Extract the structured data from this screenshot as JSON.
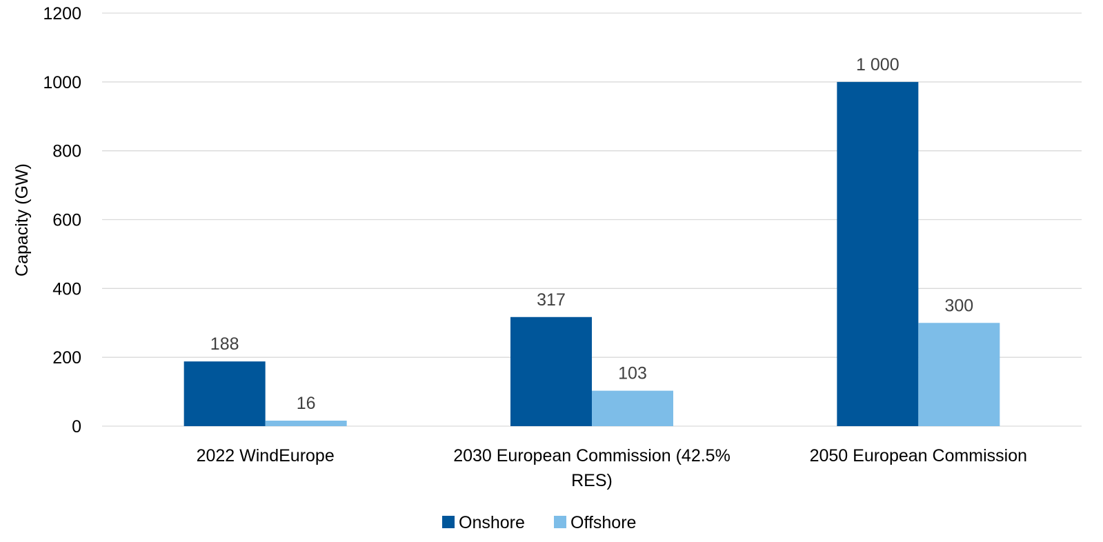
{
  "chart_data": {
    "type": "bar",
    "categories": [
      [
        "2022 WindEurope"
      ],
      [
        "2030 European Commission (42.5%",
        "RES)"
      ],
      [
        "2050 European Commission"
      ]
    ],
    "series": [
      {
        "name": "Onshore",
        "color": "#00569a",
        "values": [
          188,
          317,
          1000
        ],
        "labels": [
          "188",
          "317",
          "1 000"
        ]
      },
      {
        "name": "Offshore",
        "color": "#7dbde8",
        "values": [
          16,
          103,
          300
        ],
        "labels": [
          "16",
          "103",
          "300"
        ]
      }
    ],
    "ylabel": "Capacity (GW)",
    "xlabel": "",
    "ylim": [
      0,
      1200
    ],
    "yticks": [
      "0",
      "200",
      "400",
      "600",
      "800",
      "1000",
      "1200"
    ],
    "grid": true,
    "legend_position": "bottom"
  }
}
